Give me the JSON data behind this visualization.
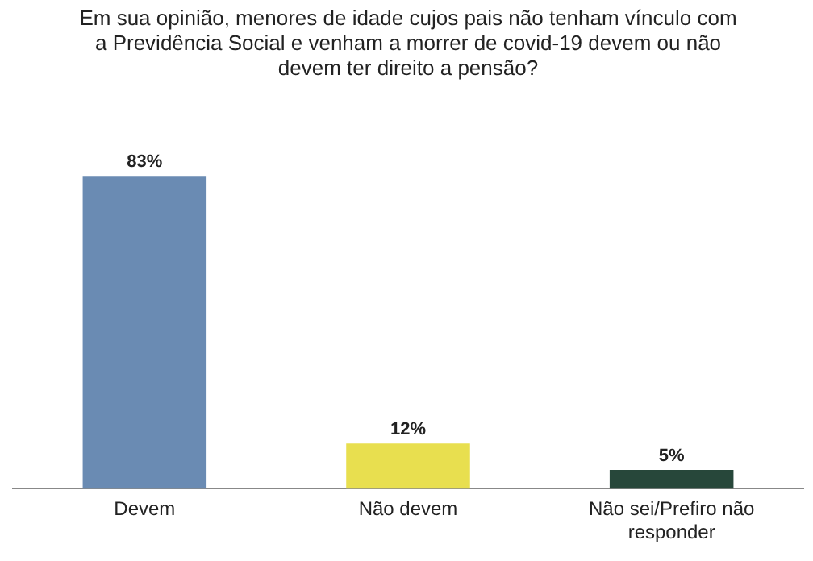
{
  "chart_data": {
    "type": "bar",
    "title": "Em sua opinião, menores de idade cujos pais não tenham vínculo com a Previdência Social e venham a morrer de covid-19 devem ou não devem ter direito a pensão?",
    "categories": [
      "Devem",
      "Não devem",
      "Não sei/Prefiro não responder"
    ],
    "values": [
      83,
      12,
      5
    ],
    "colors": [
      "#6a8bb3",
      "#e8df4f",
      "#27473a"
    ],
    "value_labels": [
      "83%",
      "12%",
      "5%"
    ],
    "grid": false,
    "legend": false,
    "tick_labels": "x"
  }
}
